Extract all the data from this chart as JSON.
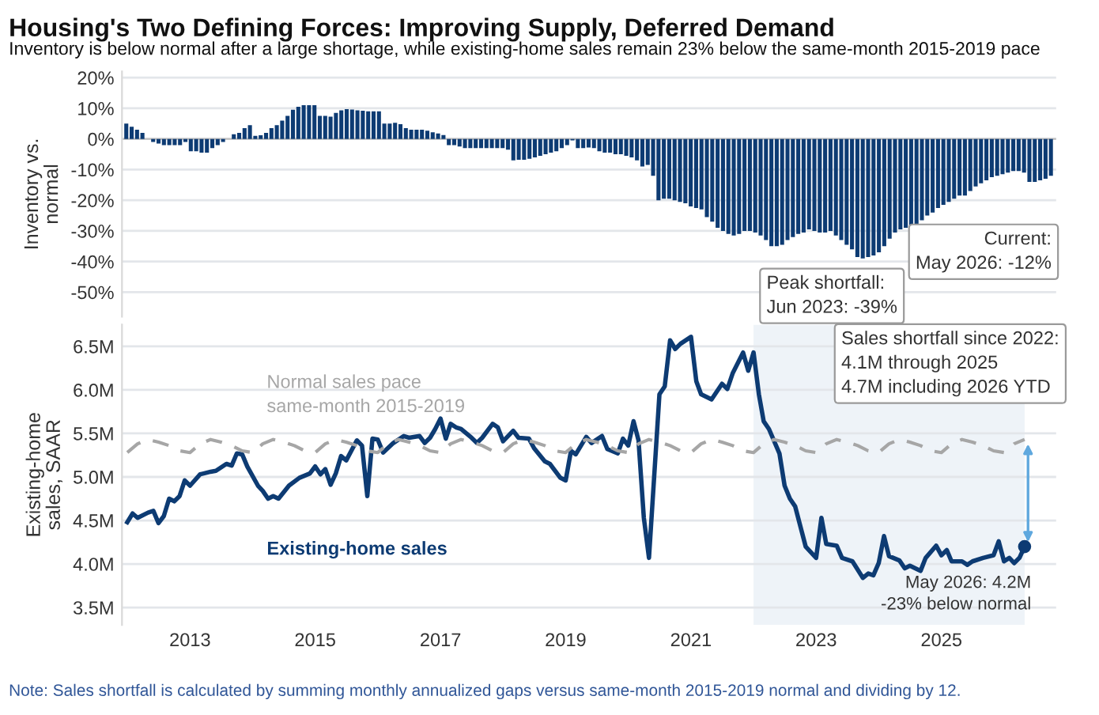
{
  "chart_data": [
    {
      "type": "bar",
      "title": "Housing's Two Defining Forces: Improving Supply, Deferred Demand",
      "subtitle": "Inventory is below normal after a large shortage, while existing-home sales remain 23% below the same-month 2015-2019 pace",
      "ylabel": "Inventory vs.\nnormal",
      "categories": [
        null,
        null,
        null,
        null,
        null,
        null,
        null,
        null,
        null,
        null,
        null,
        null,
        null,
        null,
        null,
        null,
        null,
        null,
        null,
        null,
        null,
        null,
        null,
        null,
        null,
        null,
        null,
        null,
        null,
        null,
        null,
        null,
        null,
        null,
        null,
        null,
        null,
        null,
        null,
        null,
        null,
        null,
        null,
        null,
        null,
        null,
        null,
        null,
        null,
        null,
        null,
        null,
        null,
        null,
        null,
        null,
        null,
        null,
        null,
        null,
        null,
        null,
        null,
        null,
        null,
        null,
        null,
        null,
        null,
        null,
        null,
        null,
        null,
        null,
        null,
        null,
        null,
        null,
        null,
        null,
        null,
        null,
        null,
        null,
        null,
        null,
        null,
        null,
        null,
        null,
        null,
        null,
        null,
        null,
        null,
        null,
        null,
        null,
        null,
        null,
        null,
        null,
        null,
        null,
        null,
        null,
        null,
        null,
        null,
        null,
        null,
        null,
        null,
        null,
        null,
        null,
        null,
        null,
        null,
        null,
        null,
        null,
        null,
        null,
        null,
        null,
        null,
        null,
        null,
        null,
        null,
        null,
        null,
        null,
        null,
        null,
        null,
        null,
        null,
        null,
        null,
        null,
        null,
        null,
        null,
        null,
        null,
        null,
        null,
        null,
        null,
        null,
        null,
        null,
        null,
        null,
        null,
        null,
        null,
        null,
        null,
        null,
        null,
        null,
        null,
        null,
        null,
        null,
        null,
        null,
        null,
        null,
        null
      ],
      "values": [
        5,
        4,
        3,
        2,
        0,
        -1,
        -1.5,
        -2,
        -2,
        -2,
        -2,
        -1,
        -4,
        -4,
        -4.5,
        -4.5,
        -3,
        -2,
        -1,
        0,
        1.5,
        2,
        3.5,
        4.5,
        1,
        1.2,
        2,
        3.5,
        4.5,
        6,
        7.5,
        9.5,
        10.5,
        11,
        11,
        11,
        7.5,
        7.5,
        7.3,
        8.5,
        9.3,
        9.7,
        9.6,
        9.3,
        9.2,
        9,
        9,
        9,
        5,
        5,
        5.3,
        4.8,
        3.5,
        3,
        3,
        3,
        2.7,
        2.2,
        1.8,
        1.3,
        -2,
        -2,
        -2.5,
        -3,
        -3,
        -3,
        -3,
        -3,
        -3,
        -3,
        -3,
        -3.5,
        -7,
        -6.8,
        -6.8,
        -6.5,
        -6,
        -5.5,
        -5,
        -4.5,
        -4,
        -3,
        -2,
        -0.5,
        -3,
        -3,
        -2.8,
        -3,
        -4,
        -4.5,
        -4.5,
        -5,
        -5,
        -5.5,
        -6,
        -7,
        -9,
        -8.5,
        -12,
        -20,
        -19.5,
        -19.5,
        -20,
        -20.5,
        -21,
        -22,
        -22.5,
        -23,
        -25.5,
        -27,
        -29,
        -30,
        -31,
        -31.5,
        -31,
        -30,
        -30,
        -30.5,
        -31.5,
        -33,
        -35,
        -35,
        -34.5,
        -33,
        -32,
        -31,
        -30.5,
        -29.5,
        -30,
        -30.5,
        -30.5,
        -30,
        -31.5,
        -33,
        -34.5,
        -36,
        -38.5,
        -39,
        -38.5,
        -38,
        -37,
        -35,
        -32.5,
        -30.5,
        -29.5,
        -29,
        -28.5,
        -28,
        -26.5,
        -25,
        -24,
        -22.5,
        -21.5,
        -20.5,
        -19.5,
        -18.5,
        -18.5,
        -17,
        -15.5,
        -14.5,
        -13.5,
        -12.5,
        -12,
        -11.5,
        -11,
        -10.5,
        -10.5,
        -11,
        -14,
        -14,
        -13.5,
        -13,
        -12
      ],
      "color": "#0d3b73",
      "ylim": [
        -58,
        22
      ],
      "yticks": [
        {
          "value": 20,
          "label": "20%"
        },
        {
          "value": 10,
          "label": "10%"
        },
        {
          "value": 0,
          "label": "0%"
        },
        {
          "value": -10,
          "label": "-10%"
        },
        {
          "value": -20,
          "label": "-20%"
        },
        {
          "value": -30,
          "label": "-30%"
        },
        {
          "value": -40,
          "label": "-40%"
        },
        {
          "value": -50,
          "label": "-50%"
        }
      ],
      "grid": "y",
      "tick_labels": "y",
      "annotations": [
        "Current:\nMay 2026: -12%",
        "Peak shortfall:\nJun 2023: -39%"
      ]
    },
    {
      "type": "line",
      "ylabel": "Existing-home\nsales, SAAR",
      "series": [
        {
          "name": "Existing-home sales",
          "color": "#0d3b73",
          "line_style": "solid",
          "x": [
            "2012-01",
            "2012-02",
            "2012-03",
            "2012-05",
            "2012-06",
            "2012-07",
            "2012-08",
            "2012-09",
            "2012-10",
            "2012-11",
            "2012-12",
            "2013-01",
            "2013-03",
            "2013-05",
            "2013-06",
            "2013-08",
            "2013-09",
            "2013-10",
            "2013-11",
            "2013-12",
            "2014-02",
            "2014-03",
            "2014-04",
            "2014-05",
            "2014-06",
            "2014-08",
            "2014-10",
            "2014-12",
            "2015-01",
            "2015-02",
            "2015-03",
            "2015-04",
            "2015-05",
            "2015-06",
            "2015-07",
            "2015-09",
            "2015-10",
            "2015-11",
            "2015-12",
            "2016-01",
            "2016-02",
            "2016-04",
            "2016-06",
            "2016-07",
            "2016-09",
            "2016-10",
            "2016-11",
            "2016-12",
            "2017-01",
            "2017-02",
            "2017-03",
            "2017-04",
            "2017-05",
            "2017-07",
            "2017-08",
            "2017-09",
            "2017-11",
            "2017-12",
            "2018-01",
            "2018-03",
            "2018-04",
            "2018-06",
            "2018-07",
            "2018-09",
            "2018-10",
            "2018-12",
            "2019-01",
            "2019-02",
            "2019-03",
            "2019-05",
            "2019-06",
            "2019-08",
            "2019-09",
            "2019-11",
            "2019-12",
            "2020-01",
            "2020-02",
            "2020-03",
            "2020-04",
            "2020-05",
            "2020-07",
            "2020-08",
            "2020-09",
            "2020-10",
            "2020-11",
            "2021-01",
            "2021-02",
            "2021-03",
            "2021-05",
            "2021-07",
            "2021-08",
            "2021-09",
            "2021-11",
            "2021-12",
            "2022-01",
            "2022-02",
            "2022-03",
            "2022-04",
            "2022-06",
            "2022-07",
            "2022-08",
            "2022-09",
            "2022-11",
            "2023-01",
            "2023-02",
            "2023-03",
            "2023-05",
            "2023-06",
            "2023-08",
            "2023-10",
            "2023-11",
            "2023-12",
            "2024-01",
            "2024-02",
            "2024-03",
            "2024-05",
            "2024-06",
            "2024-07",
            "2024-09",
            "2024-10",
            "2024-12",
            "2025-01",
            "2025-02",
            "2025-03",
            "2025-05",
            "2025-06",
            "2025-07",
            "2025-09",
            "2025-11",
            "2025-12",
            "2026-01",
            "2026-02",
            "2026-03",
            "2026-04",
            "2026-05"
          ],
          "values": [
            4.48,
            4.58,
            4.53,
            4.59,
            4.61,
            4.47,
            4.55,
            4.75,
            4.72,
            4.78,
            4.96,
            4.9,
            5.03,
            5.06,
            5.07,
            5.15,
            5.13,
            5.27,
            5.26,
            5.12,
            4.9,
            4.84,
            4.75,
            4.78,
            4.75,
            4.9,
            4.99,
            5.04,
            5.12,
            5.03,
            5.09,
            4.91,
            5.04,
            5.24,
            5.19,
            5.42,
            5.36,
            4.78,
            5.44,
            5.43,
            5.28,
            5.39,
            5.47,
            5.45,
            5.47,
            5.39,
            5.45,
            5.55,
            5.67,
            5.44,
            5.61,
            5.57,
            5.55,
            5.45,
            5.39,
            5.45,
            5.61,
            5.57,
            5.41,
            5.53,
            5.45,
            5.44,
            5.33,
            5.18,
            5.15,
            4.99,
            4.96,
            5.3,
            5.26,
            5.46,
            5.39,
            5.47,
            5.32,
            5.27,
            5.44,
            5.36,
            5.64,
            5.42,
            4.53,
            4.07,
            5.95,
            6.04,
            6.57,
            6.47,
            6.53,
            6.61,
            6.1,
            5.95,
            5.89,
            6.07,
            6.01,
            6.19,
            6.43,
            6.22,
            6.43,
            5.95,
            5.64,
            5.55,
            5.27,
            4.9,
            4.75,
            4.66,
            4.2,
            4.07,
            4.53,
            4.23,
            4.21,
            4.07,
            4.03,
            3.84,
            3.89,
            3.87,
            4.01,
            4.32,
            4.09,
            4.04,
            3.95,
            3.98,
            3.92,
            4.07,
            4.21,
            4.1,
            4.16,
            4.03,
            4.03,
            3.99,
            4.03,
            4.07,
            4.1,
            4.26,
            4.03,
            4.07,
            4.01,
            4.07,
            4.2
          ]
        },
        {
          "name": "Normal sales pace\nsame-month 2015-2019",
          "color": "#a6a6a6",
          "line_style": "dashed",
          "x": [
            "2012-01",
            "2012-03",
            "2012-05",
            "2012-07",
            "2012-09",
            "2012-11",
            "2013-01",
            "2013-03",
            "2013-05",
            "2013-07",
            "2013-09",
            "2013-11",
            "2014-01",
            "2014-03",
            "2014-05",
            "2014-07",
            "2014-09",
            "2014-11",
            "2015-01",
            "2015-03",
            "2015-05",
            "2015-07",
            "2015-09",
            "2015-11",
            "2016-01",
            "2016-03",
            "2016-05",
            "2016-07",
            "2016-09",
            "2016-11",
            "2017-01",
            "2017-03",
            "2017-05",
            "2017-07",
            "2017-09",
            "2017-11",
            "2018-01",
            "2018-03",
            "2018-05",
            "2018-07",
            "2018-09",
            "2018-11",
            "2019-01",
            "2019-03",
            "2019-05",
            "2019-07",
            "2019-09",
            "2019-11",
            "2020-01",
            "2020-03",
            "2020-05",
            "2020-07",
            "2020-09",
            "2020-11",
            "2021-01",
            "2021-03",
            "2021-05",
            "2021-07",
            "2021-09",
            "2021-11",
            "2022-01",
            "2022-03",
            "2022-05",
            "2022-07",
            "2022-09",
            "2022-11",
            "2023-01",
            "2023-03",
            "2023-05",
            "2023-07",
            "2023-09",
            "2023-11",
            "2024-01",
            "2024-03",
            "2024-05",
            "2024-07",
            "2024-09",
            "2024-11",
            "2025-01",
            "2025-03",
            "2025-05",
            "2025-07",
            "2025-09",
            "2025-11",
            "2026-01",
            "2026-03",
            "2026-05"
          ],
          "values": [
            5.28,
            5.38,
            5.43,
            5.4,
            5.36,
            5.3,
            5.28,
            5.38,
            5.43,
            5.4,
            5.36,
            5.3,
            5.28,
            5.38,
            5.43,
            5.4,
            5.36,
            5.3,
            5.28,
            5.38,
            5.43,
            5.4,
            5.36,
            5.3,
            5.28,
            5.38,
            5.43,
            5.4,
            5.36,
            5.3,
            5.28,
            5.38,
            5.43,
            5.4,
            5.36,
            5.3,
            5.28,
            5.38,
            5.43,
            5.4,
            5.36,
            5.3,
            5.28,
            5.38,
            5.43,
            5.4,
            5.36,
            5.3,
            5.28,
            5.38,
            5.43,
            5.4,
            5.36,
            5.3,
            5.28,
            5.38,
            5.43,
            5.4,
            5.36,
            5.3,
            5.28,
            5.38,
            5.43,
            5.4,
            5.36,
            5.3,
            5.28,
            5.38,
            5.43,
            5.4,
            5.36,
            5.3,
            5.28,
            5.38,
            5.43,
            5.4,
            5.36,
            5.3,
            5.28,
            5.38,
            5.43,
            5.4,
            5.36,
            5.3,
            5.28,
            5.38,
            5.43
          ]
        }
      ],
      "xlim": [
        "2011-12",
        "2026-11"
      ],
      "xticks": [
        "2013",
        "2015",
        "2017",
        "2019",
        "2021",
        "2023",
        "2025"
      ],
      "ylim": [
        3.3,
        6.75
      ],
      "yticks": [
        {
          "value": 3.5,
          "label": "3.5M"
        },
        {
          "value": 4.0,
          "label": "4.0M"
        },
        {
          "value": 4.5,
          "label": "4.5M"
        },
        {
          "value": 5.0,
          "label": "5.0M"
        },
        {
          "value": 5.5,
          "label": "5.5M"
        },
        {
          "value": 6.0,
          "label": "6.0M"
        },
        {
          "value": 6.5,
          "label": "6.5M"
        }
      ],
      "grid": "y",
      "legend": false,
      "bands": [
        {
          "axis": "x",
          "from": "2022-01",
          "to": "2026-05",
          "color": "#eef3f8"
        }
      ],
      "annotations": [
        "Sales shortfall since 2022:\n4.1M through 2025\n4.7M including 2026 YTD",
        {
          "text": "May 2026: 4.2M\n-23% below normal",
          "x": "2026-05",
          "y": 4.2
        },
        "Note: Sales shortfall is calculated by summing monthly annualized gaps versus same-month 2015-2019 normal and dividing by 12."
      ]
    }
  ]
}
